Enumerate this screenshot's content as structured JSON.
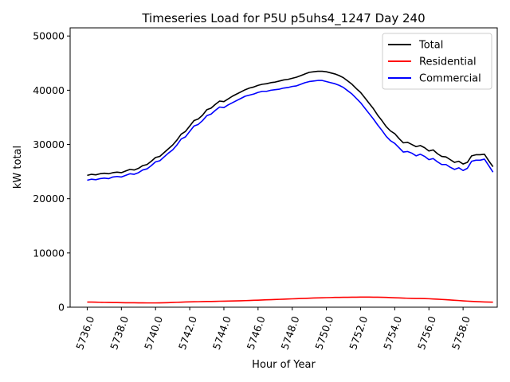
{
  "chart_data": {
    "type": "line",
    "title": "Timeseries Load for P5U p5uhs4_1247  Day 240",
    "xlabel": "Hour of Year",
    "ylabel": "kW total",
    "xlim": [
      5735.0,
      5760.0
    ],
    "ylim": [
      0,
      51500
    ],
    "x_ticks": [
      5736,
      5738,
      5740,
      5742,
      5744,
      5746,
      5748,
      5750,
      5752,
      5754,
      5756,
      5758
    ],
    "x_tick_labels": [
      "5736.0",
      "5738.0",
      "5740.0",
      "5742.0",
      "5744.0",
      "5746.0",
      "5748.0",
      "5750.0",
      "5752.0",
      "5754.0",
      "5756.0",
      "5758.0"
    ],
    "y_ticks": [
      0,
      10000,
      20000,
      30000,
      40000,
      50000
    ],
    "y_tick_labels": [
      "0",
      "10000",
      "20000",
      "30000",
      "40000",
      "50000"
    ],
    "legend_position": "top-right",
    "x": [
      5736.0,
      5736.25,
      5736.5,
      5736.75,
      5737.0,
      5737.25,
      5737.5,
      5737.75,
      5738.0,
      5738.25,
      5738.5,
      5738.75,
      5739.0,
      5739.25,
      5739.5,
      5739.75,
      5740.0,
      5740.25,
      5740.5,
      5740.75,
      5741.0,
      5741.25,
      5741.5,
      5741.75,
      5742.0,
      5742.25,
      5742.5,
      5742.75,
      5743.0,
      5743.25,
      5743.5,
      5743.75,
      5744.0,
      5744.25,
      5744.5,
      5744.75,
      5745.0,
      5745.25,
      5745.5,
      5745.75,
      5746.0,
      5746.25,
      5746.5,
      5746.75,
      5747.0,
      5747.25,
      5747.5,
      5747.75,
      5748.0,
      5748.25,
      5748.5,
      5748.75,
      5749.0,
      5749.25,
      5749.5,
      5749.75,
      5750.0,
      5750.25,
      5750.5,
      5750.75,
      5751.0,
      5751.25,
      5751.5,
      5751.75,
      5752.0,
      5752.25,
      5752.5,
      5752.75,
      5753.0,
      5753.25,
      5753.5,
      5753.75,
      5754.0,
      5754.25,
      5754.5,
      5754.75,
      5755.0,
      5755.25,
      5755.5,
      5755.75,
      5756.0,
      5756.25,
      5756.5,
      5756.75,
      5757.0,
      5757.25,
      5757.5,
      5757.75,
      5758.0,
      5758.25,
      5758.5,
      5758.75,
      5759.0,
      5759.25,
      5759.5,
      5759.75
    ],
    "series": [
      {
        "name": "Total",
        "color": "#000000",
        "values": [
          24300,
          24500,
          24400,
          24600,
          24700,
          24600,
          24800,
          24900,
          24800,
          25100,
          25400,
          25300,
          25600,
          26100,
          26300,
          26900,
          27600,
          27800,
          28500,
          29200,
          29900,
          30800,
          31900,
          32400,
          33400,
          34400,
          34700,
          35400,
          36400,
          36700,
          37400,
          38000,
          37900,
          38400,
          38900,
          39300,
          39700,
          40100,
          40400,
          40600,
          40900,
          41100,
          41200,
          41400,
          41500,
          41700,
          41900,
          42000,
          42200,
          42400,
          42700,
          43000,
          43300,
          43400,
          43500,
          43500,
          43400,
          43200,
          43000,
          42700,
          42300,
          41700,
          41100,
          40300,
          39600,
          38600,
          37600,
          36600,
          35400,
          34400,
          33300,
          32500,
          32000,
          31100,
          30300,
          30400,
          30000,
          29600,
          29800,
          29400,
          28800,
          29000,
          28300,
          27800,
          27700,
          27200,
          26700,
          26900,
          26400,
          26700,
          27900,
          28100,
          28100,
          28200,
          27000,
          25900
        ]
      },
      {
        "name": "Residential",
        "color": "#ff0000",
        "values": [
          950,
          950,
          920,
          900,
          880,
          870,
          860,
          850,
          830,
          820,
          810,
          810,
          800,
          800,
          790,
          790,
          790,
          800,
          820,
          840,
          870,
          900,
          930,
          960,
          980,
          1000,
          1010,
          1030,
          1050,
          1060,
          1080,
          1100,
          1110,
          1130,
          1150,
          1170,
          1190,
          1210,
          1240,
          1270,
          1300,
          1330,
          1360,
          1390,
          1420,
          1450,
          1480,
          1510,
          1540,
          1570,
          1600,
          1630,
          1660,
          1690,
          1720,
          1740,
          1760,
          1780,
          1800,
          1810,
          1820,
          1830,
          1840,
          1850,
          1860,
          1860,
          1860,
          1850,
          1840,
          1830,
          1800,
          1770,
          1740,
          1710,
          1680,
          1650,
          1630,
          1610,
          1600,
          1590,
          1560,
          1520,
          1480,
          1430,
          1380,
          1330,
          1280,
          1230,
          1170,
          1120,
          1070,
          1030,
          1000,
          970,
          950,
          920
        ]
      },
      {
        "name": "Commercial",
        "color": "#0000ff",
        "values": [
          23400,
          23600,
          23500,
          23700,
          23800,
          23700,
          24000,
          24100,
          24000,
          24300,
          24600,
          24500,
          24800,
          25300,
          25500,
          26100,
          26800,
          27000,
          27700,
          28400,
          29000,
          29900,
          31000,
          31400,
          32400,
          33400,
          33700,
          34400,
          35300,
          35600,
          36300,
          36900,
          36800,
          37300,
          37700,
          38100,
          38500,
          38900,
          39100,
          39300,
          39600,
          39800,
          39800,
          40000,
          40100,
          40200,
          40400,
          40500,
          40700,
          40800,
          41100,
          41400,
          41600,
          41700,
          41800,
          41800,
          41600,
          41400,
          41200,
          40900,
          40500,
          39900,
          39300,
          38500,
          37700,
          36700,
          35700,
          34700,
          33600,
          32600,
          31500,
          30700,
          30200,
          29400,
          28600,
          28700,
          28400,
          27900,
          28200,
          27800,
          27200,
          27400,
          26800,
          26300,
          26300,
          25800,
          25400,
          25700,
          25200,
          25600,
          26900,
          27100,
          27100,
          27300,
          26100,
          24900
        ]
      }
    ]
  }
}
